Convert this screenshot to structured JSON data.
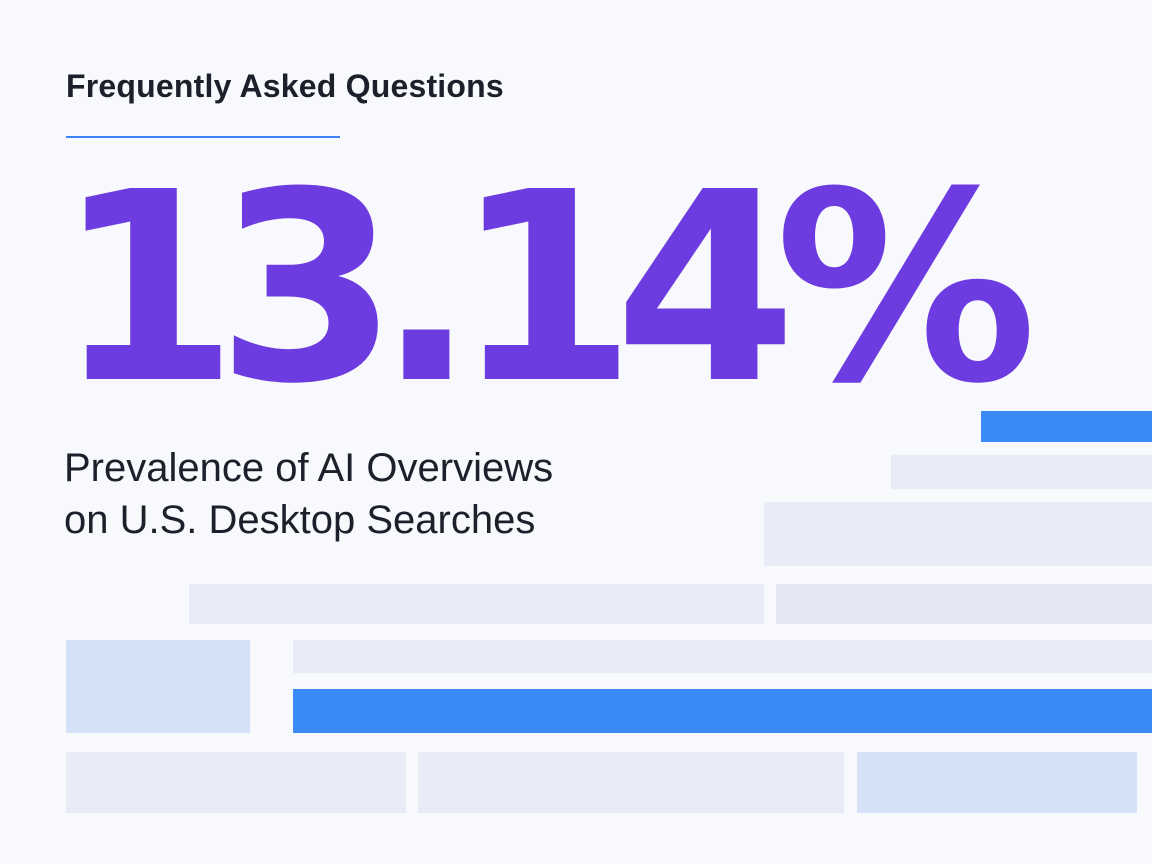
{
  "header": {
    "title": "Frequently Asked Questions"
  },
  "hero": {
    "stat": "13.14%",
    "caption_line1": "Prevalence of AI Overviews",
    "caption_line2": "on U.S. Desktop Searches"
  },
  "colors": {
    "accent_purple": "#6d3ce0",
    "accent_blue": "#3b8af8",
    "text_dark": "#1d1f2b",
    "background": "#f8f9fc"
  }
}
